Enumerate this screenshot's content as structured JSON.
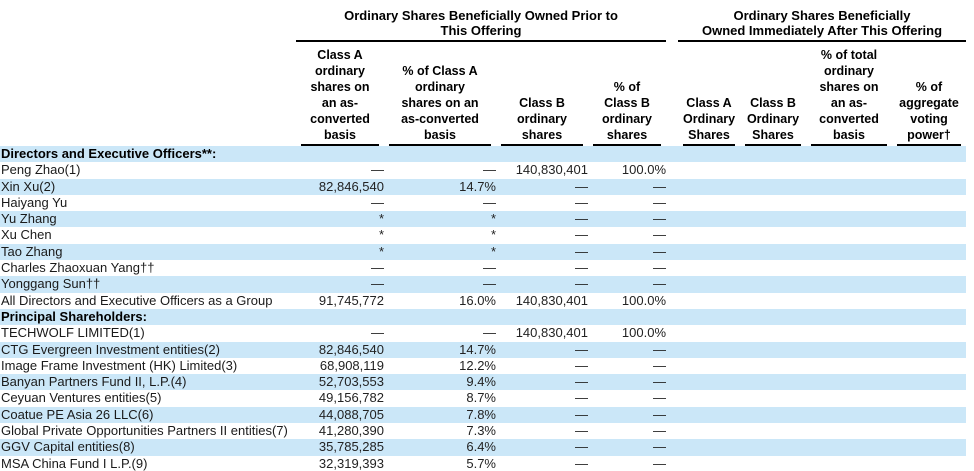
{
  "page": {
    "background": "#ffffff",
    "stripe_color": "#cbe7f8",
    "rule_color": "#000000"
  },
  "header": {
    "groups": [
      {
        "title": "Ordinary Shares Beneficially Owned Prior to\nThis Offering"
      },
      {
        "title": "Ordinary Shares Beneficially\nOwned Immediately After This Offering"
      }
    ],
    "columns": [
      "Class A\nordinary\nshares on\nan as-\nconverted\nbasis",
      "% of Class A\nordinary\nshares on an\nas-converted\nbasis",
      "Class B\nordinary\nshares",
      "% of\nClass B\nordinary\nshares",
      "Class A\nOrdinary\nShares",
      "Class B\nOrdinary\nShares",
      "% of total\nordinary\nshares on\nan as-\nconverted\nbasis",
      "% of\naggregate\nvoting\npower†"
    ]
  },
  "sections": [
    {
      "header": "Directors and Executive Officers**:",
      "rows": [
        {
          "name": "Peng Zhao(1)",
          "values": [
            "—",
            "—",
            "140,830,401",
            "100.0%",
            "",
            "",
            "",
            ""
          ]
        },
        {
          "name": "Xin Xu(2)",
          "values": [
            "82,846,540",
            "14.7%",
            "—",
            "—",
            "",
            "",
            "",
            ""
          ]
        },
        {
          "name": "Haiyang Yu",
          "values": [
            "—",
            "—",
            "—",
            "—",
            "",
            "",
            "",
            ""
          ]
        },
        {
          "name": "Yu Zhang",
          "values": [
            "*",
            "*",
            "—",
            "—",
            "",
            "",
            "",
            ""
          ]
        },
        {
          "name": "Xu Chen",
          "values": [
            "*",
            "*",
            "—",
            "—",
            "",
            "",
            "",
            ""
          ]
        },
        {
          "name": "Tao Zhang",
          "values": [
            "*",
            "*",
            "—",
            "—",
            "",
            "",
            "",
            ""
          ]
        },
        {
          "name": "Charles Zhaoxuan Yang††",
          "values": [
            "—",
            "—",
            "—",
            "—",
            "",
            "",
            "",
            ""
          ]
        },
        {
          "name": "Yonggang Sun††",
          "values": [
            "—",
            "—",
            "—",
            "—",
            "",
            "",
            "",
            ""
          ]
        },
        {
          "name": "All Directors and Executive Officers as a Group",
          "values": [
            "91,745,772",
            "16.0%",
            "140,830,401",
            "100.0%",
            "",
            "",
            "",
            ""
          ]
        }
      ]
    },
    {
      "header": "Principal Shareholders:",
      "rows": [
        {
          "name": "TECHWOLF LIMITED(1)",
          "values": [
            "—",
            "—",
            "140,830,401",
            "100.0%",
            "",
            "",
            "",
            ""
          ]
        },
        {
          "name": "CTG Evergreen Investment entities(2)",
          "values": [
            "82,846,540",
            "14.7%",
            "—",
            "—",
            "",
            "",
            "",
            ""
          ]
        },
        {
          "name": "Image Frame Investment (HK) Limited(3)",
          "values": [
            "68,908,119",
            "12.2%",
            "—",
            "—",
            "",
            "",
            "",
            ""
          ]
        },
        {
          "name": "Banyan Partners Fund II, L.P.(4)",
          "values": [
            "52,703,553",
            "9.4%",
            "—",
            "—",
            "",
            "",
            "",
            ""
          ]
        },
        {
          "name": "Ceyuan Ventures entities(5)",
          "values": [
            "49,156,782",
            "8.7%",
            "—",
            "—",
            "",
            "",
            "",
            ""
          ]
        },
        {
          "name": "Coatue PE Asia 26 LLC(6)",
          "values": [
            "44,088,705",
            "7.8%",
            "—",
            "—",
            "",
            "",
            "",
            ""
          ]
        },
        {
          "name": "Global Private Opportunities Partners II entities(7)",
          "values": [
            "41,280,390",
            "7.3%",
            "—",
            "—",
            "",
            "",
            "",
            ""
          ]
        },
        {
          "name": "GGV Capital entities(8)",
          "values": [
            "35,785,285",
            "6.4%",
            "—",
            "—",
            "",
            "",
            "",
            ""
          ]
        },
        {
          "name": "MSA China Fund I L.P.(9)",
          "values": [
            "32,319,393",
            "5.7%",
            "—",
            "—",
            "",
            "",
            "",
            ""
          ]
        }
      ]
    }
  ]
}
